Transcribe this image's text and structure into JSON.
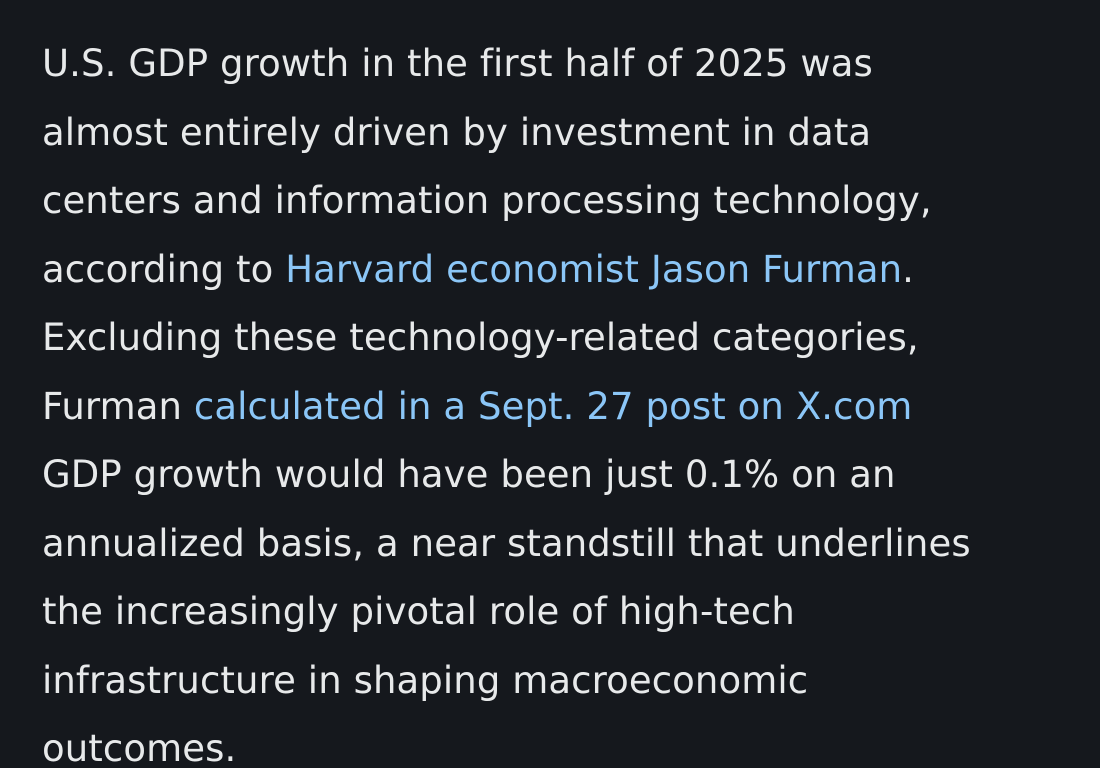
{
  "article": {
    "lines": {
      "l1": "U.S. GDP growth in the first half of 2025 was",
      "l2": "almost entirely driven by investment in data",
      "l3": "centers and information processing technology,",
      "l4_before": "according to ",
      "l4_link": "Harvard economist Jason Furman",
      "l4_after": ".",
      "l5": "Excluding these technology-related categories,",
      "l6_before": "Furman ",
      "l6_link": "calculated in a Sept. 27 post on X.com",
      "l7": "GDP growth would have been just 0.1% on an",
      "l8": "annualized basis, a near standstill that underlines",
      "l9": "the increasingly pivotal role of high-tech",
      "l10": "infrastructure in shaping macroeconomic",
      "l11": "outcomes."
    }
  },
  "colors": {
    "background": "#15181d",
    "text": "#e7e9ea",
    "link": "#8bc6f7"
  }
}
